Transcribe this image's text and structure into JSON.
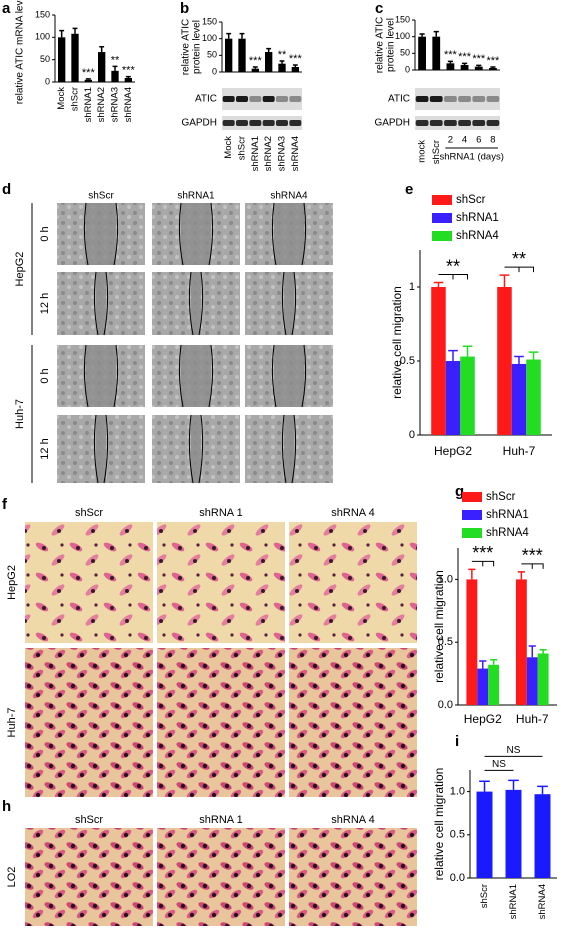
{
  "chart_data": [
    {
      "type": "bar",
      "label": "a",
      "ylabel": [
        "relative ATIC mRNA level"
      ],
      "categories": [
        "Mock",
        "shScr",
        "shRNA1",
        "shRNA2",
        "shRNA3",
        "shRNA4"
      ],
      "values": [
        100,
        108,
        5,
        67,
        25,
        9
      ],
      "errors": [
        15,
        12,
        2,
        12,
        10,
        3
      ],
      "color": "#000000",
      "significance": [
        null,
        null,
        "***",
        null,
        "**",
        "***"
      ],
      "ylim": [
        0,
        150
      ],
      "yticks": [
        0,
        50,
        100,
        150
      ]
    },
    {
      "type": "bar",
      "label": "b",
      "ylabel": [
        "relative ATIC",
        "protein level"
      ],
      "categories": [
        "Mock",
        "shScr",
        "shRNA1",
        "shRNA2",
        "shRNA3",
        "shRNA4"
      ],
      "values": [
        100,
        100,
        10,
        60,
        25,
        15
      ],
      "errors": [
        15,
        15,
        5,
        10,
        8,
        6
      ],
      "color": "#000000",
      "significance": [
        null,
        null,
        "***",
        null,
        "**",
        "***"
      ],
      "ylim": [
        0,
        150
      ],
      "yticks": [
        0,
        50,
        100,
        150
      ],
      "blots": [
        "ATIC",
        "GAPDH"
      ]
    },
    {
      "type": "bar",
      "label": "c",
      "ylabel": [
        "relative ATIC",
        "protein level"
      ],
      "categories": [
        "mock",
        "shScr",
        "2",
        "4",
        "6",
        "8"
      ],
      "group_label": "shRNA1 (days)",
      "values": [
        100,
        100,
        20,
        15,
        10,
        6
      ],
      "errors": [
        8,
        15,
        6,
        5,
        4,
        3
      ],
      "color": "#000000",
      "significance": [
        null,
        null,
        "***",
        "***",
        "***",
        "***"
      ],
      "ylim": [
        0,
        150
      ],
      "yticks": [
        0,
        50,
        100,
        150
      ],
      "blots": [
        "ATIC",
        "GAPDH"
      ]
    },
    {
      "type": "grouped-bar",
      "label": "e",
      "ylabel": [
        "relative cell migration"
      ],
      "categories": [
        "HepG2",
        "Huh-7"
      ],
      "series": [
        {
          "name": "shScr",
          "color": "#ff1a1a",
          "values": [
            1.0,
            1.0
          ],
          "errors": [
            0.03,
            0.08
          ]
        },
        {
          "name": "shRNA1",
          "color": "#3a1fff",
          "values": [
            0.5,
            0.48
          ],
          "errors": [
            0.07,
            0.05
          ]
        },
        {
          "name": "shRNA4",
          "color": "#22dd22",
          "values": [
            0.53,
            0.51
          ],
          "errors": [
            0.07,
            0.05
          ]
        }
      ],
      "significance": [
        "**",
        "**"
      ],
      "ylim": [
        0,
        1.25
      ],
      "yticks": [
        0,
        0.5,
        1
      ]
    },
    {
      "type": "grouped-bar",
      "label": "g",
      "ylabel": [
        "relative cell migration"
      ],
      "categories": [
        "HepG2",
        "Huh-7"
      ],
      "series": [
        {
          "name": "shScr",
          "color": "#ff1a1a",
          "values": [
            1.0,
            1.0
          ],
          "errors": [
            0.08,
            0.06
          ]
        },
        {
          "name": "shRNA1",
          "color": "#3a1fff",
          "values": [
            0.29,
            0.38
          ],
          "errors": [
            0.06,
            0.09
          ]
        },
        {
          "name": "shRNA4",
          "color": "#22dd22",
          "values": [
            0.32,
            0.41
          ],
          "errors": [
            0.04,
            0.03
          ]
        }
      ],
      "significance": [
        "***",
        "***"
      ],
      "ylim": [
        0,
        1.25
      ],
      "yticks": [
        {
          "value": 0,
          "label": "0.0"
        },
        {
          "value": 0.5,
          "label": "0.5"
        },
        {
          "value": 1,
          "label": "1.0"
        }
      ]
    },
    {
      "type": "bar",
      "label": "i",
      "ylabel": [
        "relative cell migration"
      ],
      "categories": [
        "shScr",
        "shRNA1",
        "shRNA4"
      ],
      "values": [
        1.0,
        1.02,
        0.97
      ],
      "errors": [
        0.12,
        0.11,
        0.09
      ],
      "color": "#1a1aff",
      "brackets": [
        {
          "from": 0,
          "to": 1,
          "label": "NS"
        },
        {
          "from": 0,
          "to": 2,
          "label": "NS"
        }
      ],
      "ylim": [
        0,
        1.25
      ],
      "yticks": [
        {
          "value": 0,
          "label": "0.0"
        },
        {
          "value": 0.5,
          "label": "0.5"
        },
        {
          "value": 1,
          "label": "1.0"
        }
      ]
    }
  ],
  "image_panels": {
    "d": {
      "label": "d",
      "columns": [
        "shScr",
        "shRNA1",
        "shRNA4"
      ],
      "groups": [
        {
          "name": "HepG2",
          "rows": [
            "0 h",
            "12 h"
          ]
        },
        {
          "name": "Huh-7",
          "rows": [
            "0 h",
            "12 h"
          ]
        }
      ]
    },
    "f": {
      "label": "f",
      "columns": [
        "shScr",
        "shRNA 1",
        "shRNA 4"
      ],
      "rows": [
        "HepG2",
        "Huh-7"
      ]
    },
    "h": {
      "label": "h",
      "columns": [
        "shScr",
        "shRNA 1",
        "shRNA 4"
      ],
      "rows": [
        "LO2"
      ]
    }
  }
}
